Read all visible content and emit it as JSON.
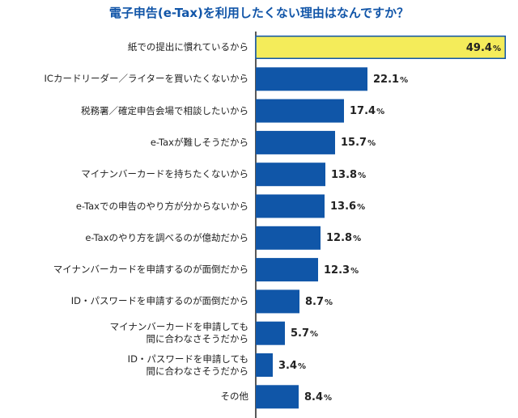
{
  "chart_data": {
    "type": "bar",
    "orientation": "horizontal",
    "title": "電子申告(e-Tax)を利用したくない理由はなんですか？",
    "unit": "%",
    "xlim": [
      0,
      49.4
    ],
    "categories": [
      "紙での提出に慣れているから",
      "ICカードリーダー／ライターを買いたくないから",
      "税務署／確定申告会場で相談したいから",
      "e-Taxが難しそうだから",
      "マイナンバーカードを持ちたくないから",
      "e-Taxでの申告のやり方が分からないから",
      "e-Taxのやり方を調べるのが億劫だから",
      "マイナンバーカードを申請するのが面倒だから",
      "ID・パスワードを申請するのが面倒だから",
      "マイナンバーカードを申請しても\n間に合わなさそうだから",
      "ID・パスワードを申請しても\n間に合わなさそうだから",
      "その他"
    ],
    "values": [
      49.4,
      22.1,
      17.4,
      15.7,
      13.8,
      13.6,
      12.8,
      12.3,
      8.7,
      5.7,
      3.4,
      8.4
    ],
    "value_labels": [
      "49.4",
      "22.1",
      "17.4",
      "15.7",
      "13.8",
      "13.6",
      "12.8",
      "12.3",
      "8.7",
      "5.7",
      "3.4",
      "8.4"
    ],
    "highlight_index": 0
  },
  "colors": {
    "title": "#1155a8",
    "bar": "#1056a8",
    "highlight_fill": "#f4ec5a",
    "highlight_stroke": "#1056a8",
    "axis": "#222222",
    "text": "#222222"
  }
}
